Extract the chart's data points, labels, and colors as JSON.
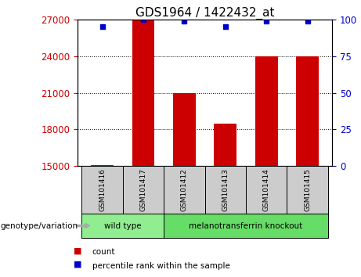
{
  "title": "GDS1964 / 1422432_at",
  "samples": [
    "GSM101416",
    "GSM101417",
    "GSM101412",
    "GSM101413",
    "GSM101414",
    "GSM101415"
  ],
  "counts": [
    15100,
    27000,
    21000,
    18500,
    24000,
    24000
  ],
  "percentiles": [
    95,
    100,
    99,
    95,
    99,
    99
  ],
  "ylim_left": [
    15000,
    27000
  ],
  "ylim_right": [
    0,
    100
  ],
  "yticks_left": [
    15000,
    18000,
    21000,
    24000,
    27000
  ],
  "yticks_right": [
    0,
    25,
    50,
    75,
    100
  ],
  "bar_color": "#cc0000",
  "dot_color": "#0000cc",
  "bg_color": "#ffffff",
  "wt_color": "#90ee90",
  "ko_color": "#66dd66",
  "gray_color": "#cccccc",
  "groups": [
    {
      "label": "wild type",
      "indices": [
        0,
        1
      ]
    },
    {
      "label": "melanotransferrin knockout",
      "indices": [
        2,
        3,
        4,
        5
      ]
    }
  ],
  "genotype_label": "genotype/variation",
  "legend_count_label": "count",
  "legend_pct_label": "percentile rank within the sample",
  "title_fontsize": 11,
  "tick_fontsize": 8.5
}
